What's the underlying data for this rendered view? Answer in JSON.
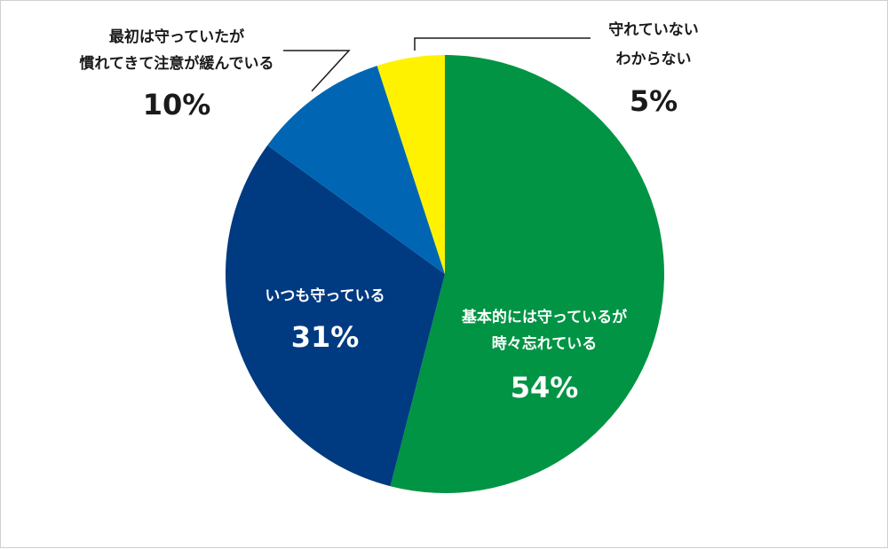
{
  "chart_data": {
    "type": "pie",
    "slices": [
      {
        "label_lines": [
          "基本的には守っているが",
          "時々忘れている"
        ],
        "value": 54,
        "value_label": "54%",
        "color": "#009444"
      },
      {
        "label_lines": [
          "いつも守っている"
        ],
        "value": 31,
        "value_label": "31%",
        "color": "#003a80"
      },
      {
        "label_lines": [
          "最初は守っていたが",
          "慣れてきて注意が緩んでいる"
        ],
        "value": 10,
        "value_label": "10%",
        "color": "#0066b3"
      },
      {
        "label_lines": [
          "守れていない",
          "わからない"
        ],
        "value": 5,
        "value_label": "5%",
        "color": "#fff200"
      }
    ],
    "start": "12 o'clock",
    "direction": "clockwise"
  }
}
